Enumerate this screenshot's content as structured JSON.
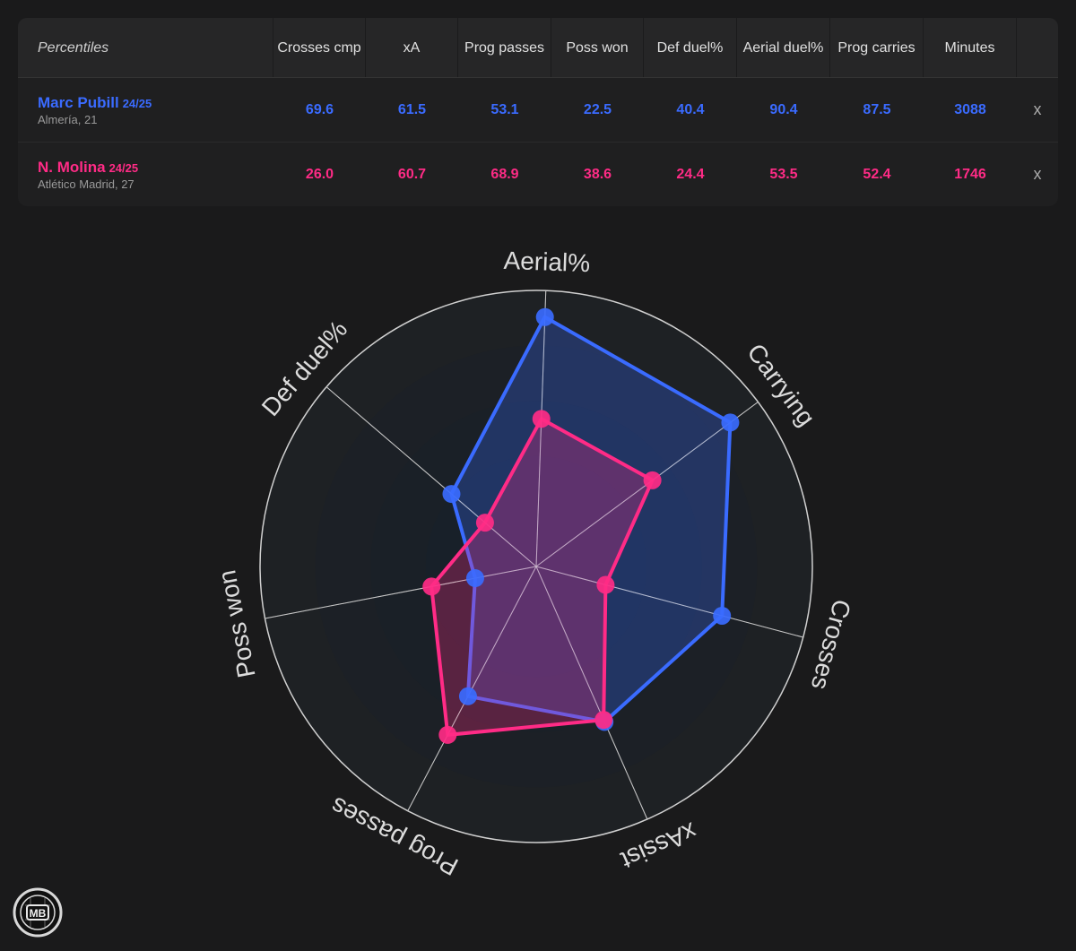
{
  "table": {
    "header": {
      "percentiles": "Percentiles",
      "columns": [
        "Crosses cmp",
        "xA",
        "Prog passes",
        "Poss won",
        "Def duel%",
        "Aerial duel%",
        "Prog carries",
        "Minutes"
      ]
    },
    "rows": [
      {
        "name": "Marc Pubill",
        "season": "24/25",
        "team": "Almería, 21",
        "values": [
          "69.6",
          "61.5",
          "53.1",
          "22.5",
          "40.4",
          "90.4",
          "87.5",
          "3088"
        ],
        "remove": "x",
        "color": "#3a6bff"
      },
      {
        "name": "N. Molina",
        "season": "24/25",
        "team": "Atlético Madrid, 27",
        "values": [
          "26.0",
          "60.7",
          "68.9",
          "38.6",
          "24.4",
          "53.5",
          "52.4",
          "1746"
        ],
        "remove": "x",
        "color": "#ff2b86"
      }
    ]
  },
  "chart_data": {
    "type": "radar",
    "axes": [
      "Aerial%",
      "Carrying",
      "Crosses",
      "xAssist",
      "Prog passes",
      "Poss won",
      "Def duel%"
    ],
    "range": [
      0,
      100
    ],
    "series": [
      {
        "name": "Marc Pubill",
        "color": "#3a6bff",
        "values": [
          90.4,
          87.5,
          69.6,
          61.5,
          53.1,
          22.5,
          40.4
        ]
      },
      {
        "name": "N. Molina",
        "color": "#ff2b86",
        "values": [
          53.5,
          52.4,
          26.0,
          60.7,
          68.9,
          38.6,
          24.4
        ]
      }
    ]
  },
  "logo": {
    "text": "MB"
  }
}
